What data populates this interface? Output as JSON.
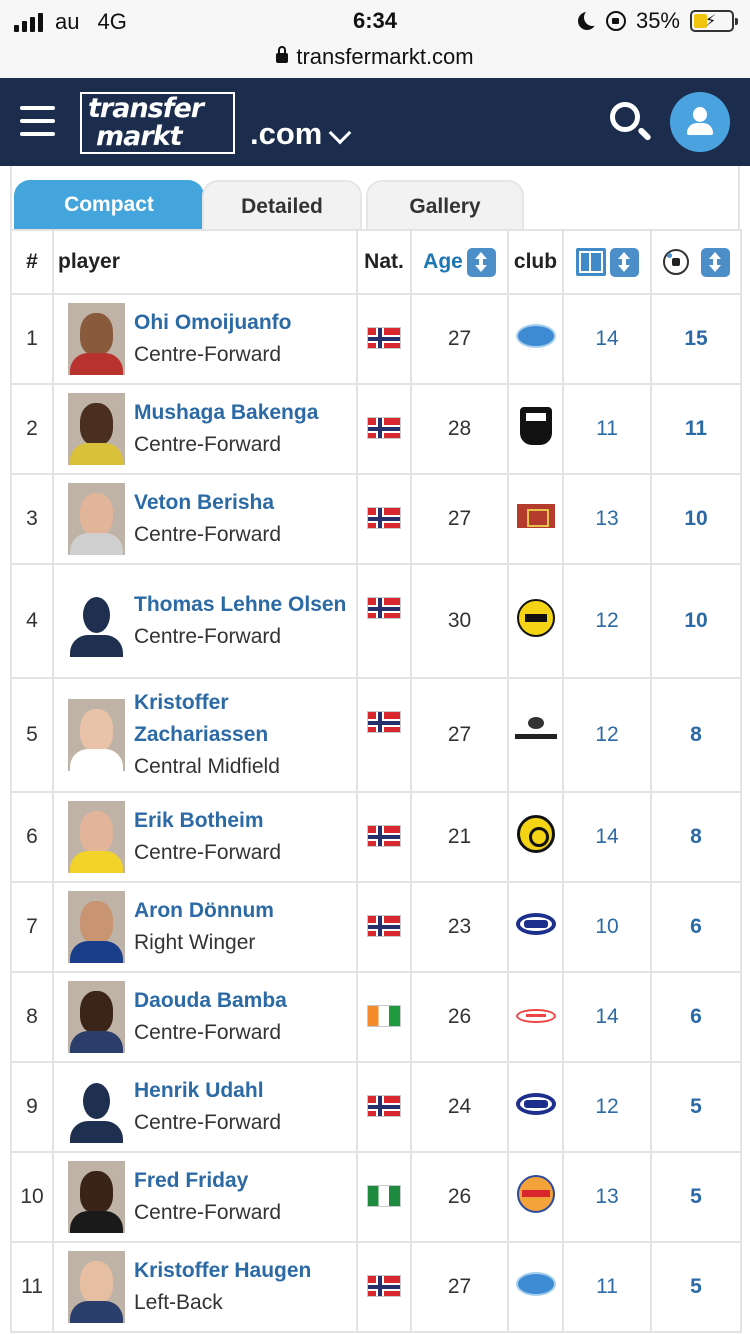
{
  "status_bar": {
    "carrier": "au",
    "network": "4G",
    "time": "6:34",
    "battery": "35%",
    "battery_level": 0.35
  },
  "browser": {
    "url": "transfermarkt.com"
  },
  "header": {
    "logo_line1": "transfer",
    "logo_line2": "markt",
    "domain": ".com",
    "brand_color": "#1b2c4c",
    "accent_color": "#44a4dc"
  },
  "tabs": [
    {
      "label": "Compact",
      "active": true
    },
    {
      "label": "Detailed",
      "active": false
    },
    {
      "label": "Gallery",
      "active": false
    }
  ],
  "table": {
    "headers": {
      "rank": "#",
      "player": "player",
      "nat": "Nat.",
      "age": "Age",
      "club": "club"
    },
    "rows": [
      {
        "rank": "1",
        "name": "Ohi Omoijuanfo",
        "position": "Centre-Forward",
        "nationality": "Norway",
        "age": "27",
        "club": "molde",
        "apps": "14",
        "goals": "15"
      },
      {
        "rank": "2",
        "name": "Mushaga Bakenga",
        "position": "Centre-Forward",
        "nationality": "Norway",
        "age": "28",
        "club": "odd",
        "apps": "11",
        "goals": "11"
      },
      {
        "rank": "3",
        "name": "Veton Berisha",
        "position": "Centre-Forward",
        "nationality": "Norway",
        "age": "27",
        "club": "sarpsborg",
        "apps": "13",
        "goals": "10"
      },
      {
        "rank": "4",
        "name": "Thomas Lehne Olsen",
        "position": "Centre-Forward",
        "nationality": "Norway",
        "age": "30",
        "club": "lsk",
        "apps": "12",
        "goals": "10"
      },
      {
        "rank": "5",
        "name": "Kristoffer Zachariassen",
        "position": "Central Midfield",
        "nationality": "Norway",
        "age": "27",
        "club": "rosenborg",
        "apps": "12",
        "goals": "8"
      },
      {
        "rank": "6",
        "name": "Erik Botheim",
        "position": "Centre-Forward",
        "nationality": "Norway",
        "age": "21",
        "club": "bodo-glimt",
        "apps": "14",
        "goals": "8"
      },
      {
        "rank": "7",
        "name": "Aron Dönnum",
        "position": "Right Winger",
        "nationality": "Norway",
        "age": "23",
        "club": "valerenga",
        "apps": "10",
        "goals": "6"
      },
      {
        "rank": "8",
        "name": "Daouda Bamba",
        "position": "Centre-Forward",
        "nationality": "Cote d'Ivoire",
        "age": "26",
        "club": "brann",
        "apps": "14",
        "goals": "6"
      },
      {
        "rank": "9",
        "name": "Henrik Udahl",
        "position": "Centre-Forward",
        "nationality": "Norway",
        "age": "24",
        "club": "valerenga",
        "apps": "12",
        "goals": "5"
      },
      {
        "rank": "10",
        "name": "Fred Friday",
        "position": "Centre-Forward",
        "nationality": "Nigeria",
        "age": "26",
        "club": "stromsgodset",
        "apps": "13",
        "goals": "5"
      },
      {
        "rank": "11",
        "name": "Kristoffer Haugen",
        "position": "Left-Back",
        "nationality": "Norway",
        "age": "27",
        "club": "molde",
        "apps": "11",
        "goals": "5"
      }
    ]
  }
}
